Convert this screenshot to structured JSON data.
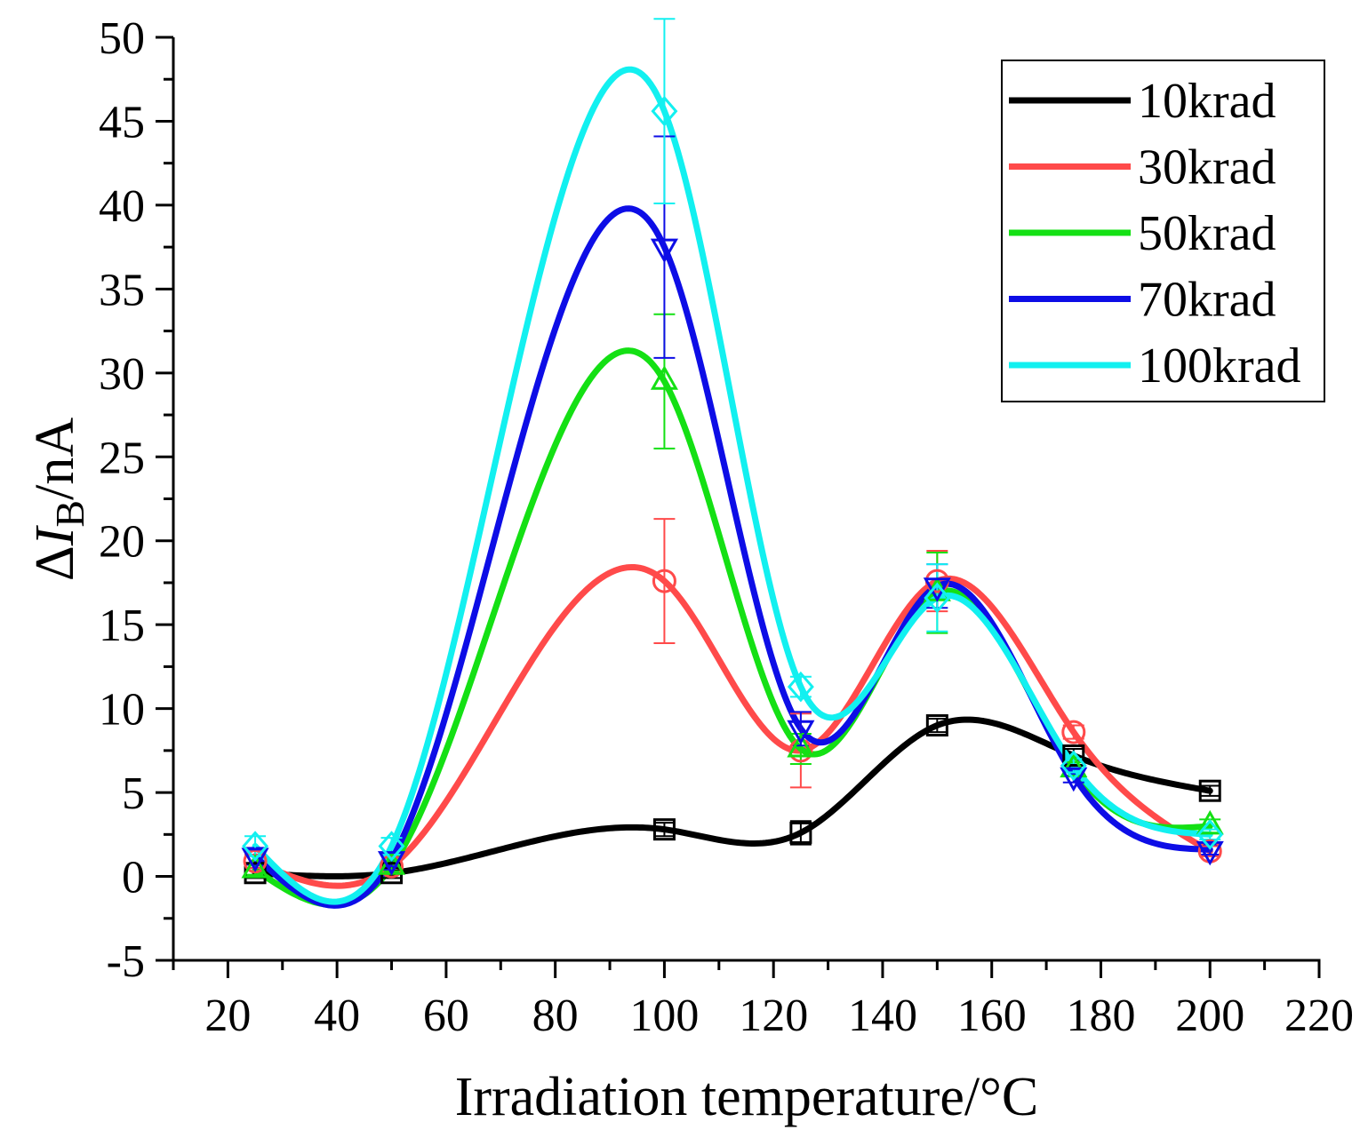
{
  "chart_data": {
    "type": "line",
    "title": "",
    "xlabel": "Irradiation temperature/°C",
    "ylabel": {
      "delta": "Δ",
      "var": "I",
      "sub": "B",
      "unit": "/nA"
    },
    "xlim": [
      10,
      220
    ],
    "ylim": [
      -5,
      50
    ],
    "x_ticks": [
      20,
      40,
      60,
      80,
      100,
      120,
      140,
      160,
      180,
      200,
      220
    ],
    "y_ticks": [
      -5,
      0,
      5,
      10,
      15,
      20,
      25,
      30,
      35,
      40,
      45,
      50
    ],
    "grid": false,
    "legend": "top-right",
    "x": [
      25,
      50,
      100,
      125,
      150,
      175,
      200
    ],
    "series": [
      {
        "name": "10krad",
        "color": "#000000",
        "marker": "square",
        "values": [
          0.2,
          0.2,
          2.8,
          2.6,
          9.0,
          7.2,
          5.1
        ],
        "errors": [
          0.3,
          0.3,
          0.4,
          0.7,
          0.4,
          0.4,
          0.3
        ]
      },
      {
        "name": "30krad",
        "color": "#ff4a4a",
        "marker": "circle",
        "values": [
          0.9,
          0.6,
          17.6,
          7.5,
          17.6,
          8.6,
          1.5
        ],
        "errors": [
          0.4,
          0.3,
          3.7,
          2.2,
          1.8,
          0.4,
          0.3
        ]
      },
      {
        "name": "50krad",
        "color": "#14e014",
        "marker": "triangle-up",
        "values": [
          0.4,
          0.6,
          29.5,
          7.6,
          16.9,
          6.4,
          3.0
        ],
        "errors": [
          0.3,
          0.3,
          4.0,
          0.9,
          2.4,
          0.4,
          0.4
        ]
      },
      {
        "name": "70krad",
        "color": "#0d0de6",
        "marker": "triangle-down",
        "values": [
          1.2,
          1.0,
          37.5,
          8.8,
          17.3,
          6.0,
          1.6
        ],
        "errors": [
          0.5,
          0.4,
          6.6,
          1.0,
          1.3,
          0.4,
          0.3
        ]
      },
      {
        "name": "100krad",
        "color": "#12f0f0",
        "marker": "diamond",
        "values": [
          1.8,
          1.8,
          45.6,
          11.3,
          16.6,
          6.6,
          2.5
        ],
        "errors": [
          0.6,
          0.5,
          5.5,
          0.6,
          2.0,
          0.4,
          0.3
        ]
      }
    ]
  }
}
